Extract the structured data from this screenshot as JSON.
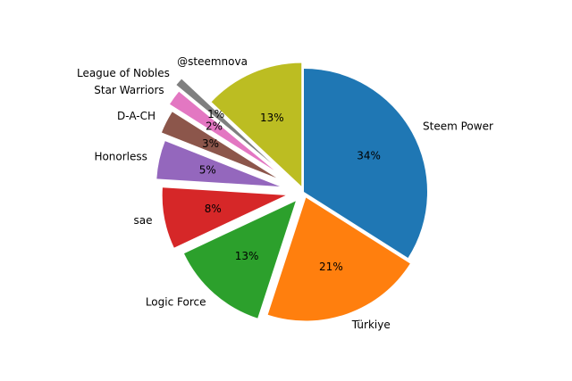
{
  "chart_data": {
    "type": "pie",
    "categories": [
      "Steem Power",
      "Türkiye",
      "Logic Force",
      "sae",
      "Honorless",
      "D-A-CH",
      "Star Warriors",
      "League of Nobles",
      "@steemnova"
    ],
    "values": [
      34,
      21,
      13,
      8,
      5,
      3,
      2,
      1,
      13
    ],
    "value_labels": [
      "34%",
      "21%",
      "13%",
      "8%",
      "5%",
      "3%",
      "2%",
      "1%",
      "13%"
    ],
    "colors": [
      "#1f77b4",
      "#ff7f0e",
      "#2ca02c",
      "#d62728",
      "#9467bd",
      "#8c564b",
      "#e377c2",
      "#7f7f7f",
      "#bcbd22"
    ]
  }
}
